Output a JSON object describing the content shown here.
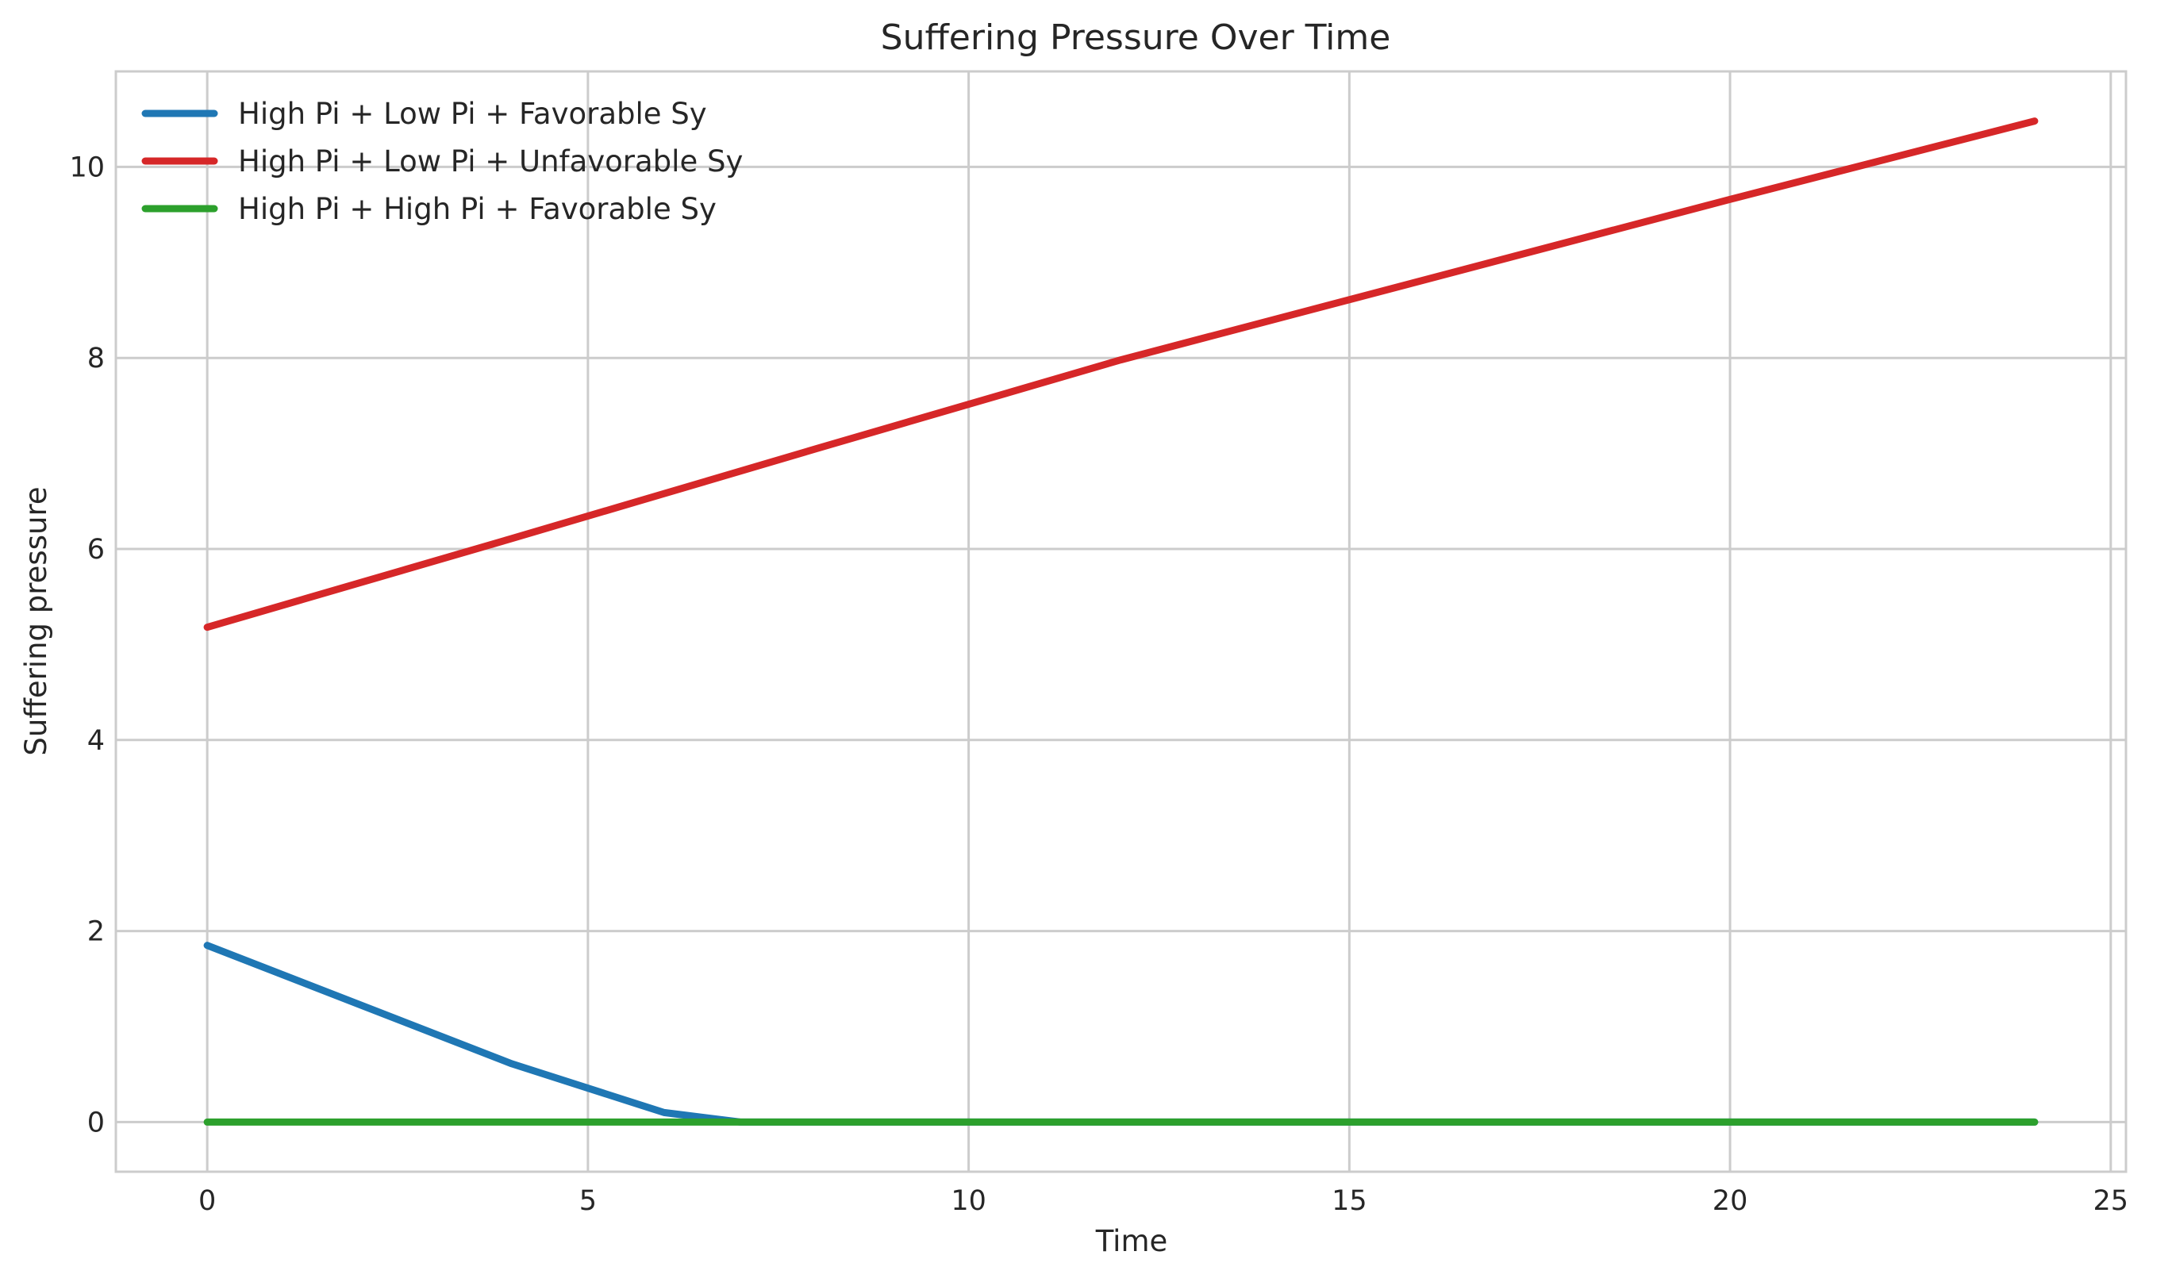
{
  "chart_data": {
    "type": "line",
    "title": "Suffering Pressure Over Time",
    "xlabel": "Time",
    "ylabel": "Suffering pressure",
    "xlim": [
      -1.2,
      25.2
    ],
    "ylim": [
      -0.52,
      11.0
    ],
    "xticks": [
      0,
      5,
      10,
      15,
      20,
      25
    ],
    "yticks": [
      0,
      2,
      4,
      6,
      8,
      10
    ],
    "grid": true,
    "legend_position": "upper-left",
    "series": [
      {
        "name": "High Pi + Low Pi + Favorable Sy",
        "color": "#1f77b4",
        "x": [
          0,
          4,
          6,
          7,
          8,
          10,
          12,
          14,
          16,
          18,
          20,
          22,
          24
        ],
        "y": [
          1.85,
          0.61,
          0.1,
          0.0,
          0.0,
          0.0,
          0.0,
          0.0,
          0.0,
          0.0,
          0.0,
          0.0,
          0.0
        ]
      },
      {
        "name": "High Pi + Low Pi + Unfavorable Sy",
        "color": "#d62728",
        "x": [
          0,
          4,
          8,
          12,
          16,
          20,
          24
        ],
        "y": [
          5.18,
          6.11,
          7.05,
          7.98,
          8.82,
          9.66,
          10.48
        ]
      },
      {
        "name": "High Pi + High Pi + Favorable Sy",
        "color": "#2ca02c",
        "x": [
          0,
          4,
          8,
          12,
          16,
          20,
          24
        ],
        "y": [
          0,
          0,
          0,
          0,
          0,
          0,
          0
        ]
      }
    ]
  }
}
